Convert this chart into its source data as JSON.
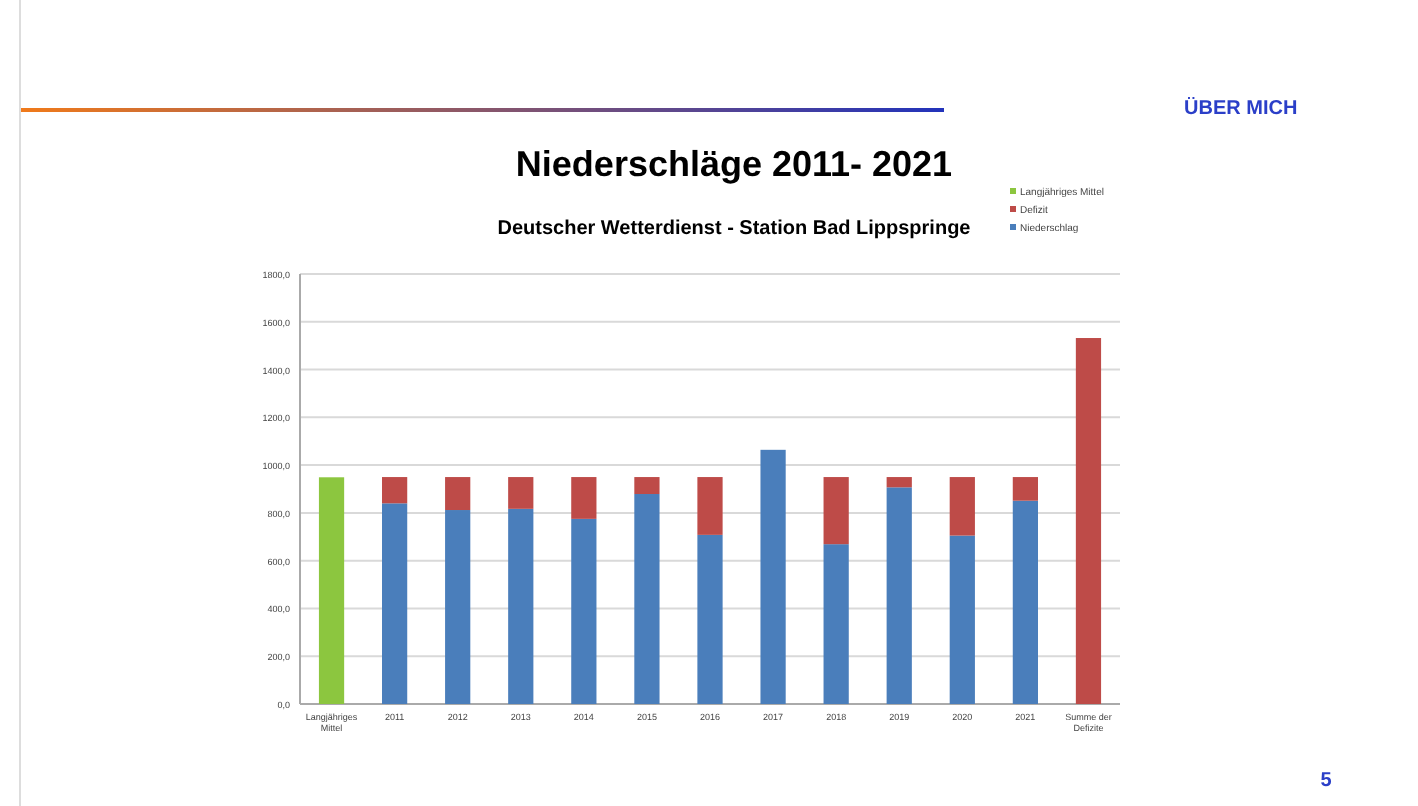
{
  "chart_data": {
    "type": "bar",
    "title": "Niederschläge 2011- 2021",
    "subtitle": "Deutscher Wetterdienst - Station Bad Lippspringe",
    "annotations": [
      "ÜBER MICH",
      "5"
    ],
    "categories": [
      "Langjähriges Mittel",
      "2011",
      "2012",
      "2013",
      "2014",
      "2015",
      "2016",
      "2017",
      "2018",
      "2019",
      "2020",
      "2021",
      "Summe der Defizite"
    ],
    "stacked": true,
    "series": [
      {
        "name": "Niederschlag",
        "color": "#4a7ebb",
        "values": [
          null,
          840,
          812,
          817,
          775,
          879,
          708,
          1064,
          669,
          907,
          705,
          851,
          null
        ]
      },
      {
        "name": "Defizit",
        "color": "#be4b48",
        "values": [
          null,
          110,
          138,
          133,
          175,
          71,
          242,
          null,
          281,
          43,
          245,
          99,
          1532
        ]
      },
      {
        "name": "Langjähriges Mittel",
        "color": "#8cc63f",
        "values": [
          949,
          null,
          null,
          null,
          null,
          null,
          null,
          null,
          null,
          null,
          null,
          null,
          null
        ]
      }
    ],
    "ylim": [
      0,
      1800
    ],
    "yticks": [
      {
        "value": 0,
        "label": "0,0"
      },
      {
        "value": 200,
        "label": "200,0"
      },
      {
        "value": 400,
        "label": "400,0"
      },
      {
        "value": 600,
        "label": "600,0"
      },
      {
        "value": 800,
        "label": "800,0"
      },
      {
        "value": 1000,
        "label": "1000,0"
      },
      {
        "value": 1200,
        "label": "1200,0"
      },
      {
        "value": 1400,
        "label": "1400,0"
      },
      {
        "value": 1600,
        "label": "1600,0"
      },
      {
        "value": 1800,
        "label": "1800,0"
      }
    ],
    "grid": "y",
    "legend": "top right"
  }
}
